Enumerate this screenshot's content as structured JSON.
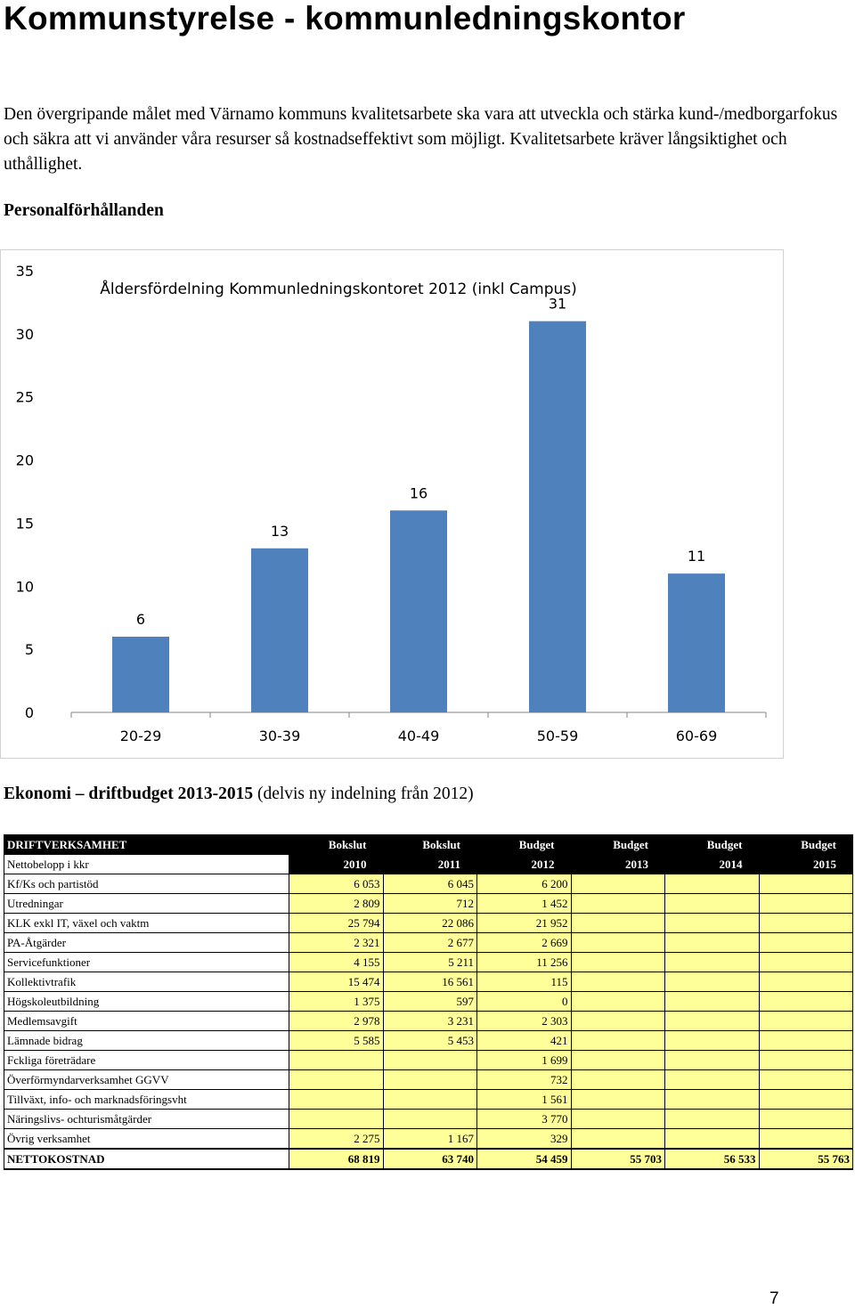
{
  "page": {
    "title": "Kommunstyrelse - kommunledningskontor",
    "intro": "Den övergripande målet med Värnamo kommuns kvalitetsarbete ska vara att utveckla och stärka kund-/medborgarfokus och säkra att vi använder våra resurser så kostnadseffektivt som möjligt. Kvalitetsarbete kräver långsiktighet och uthållighet.",
    "section1": "Personalförhållanden",
    "section2_bold1": "Ekonomi",
    "section2_dash": " – ",
    "section2_bold2": "driftbudget 2013-2015",
    "section2_rest": " (delvis ny indelning från 2012)",
    "page_number": "7"
  },
  "chart_data": {
    "type": "bar",
    "title": "Åldersfördelning Kommunledningskontoret 2012 (inkl Campus)",
    "categories": [
      "20-29",
      "30-39",
      "40-49",
      "50-59",
      "60-69"
    ],
    "values": [
      6,
      13,
      16,
      31,
      11
    ],
    "ylim": [
      0,
      35
    ],
    "yticks": [
      "0",
      "5",
      "10",
      "15",
      "20",
      "25",
      "30",
      "35"
    ],
    "xlabel": "",
    "ylabel": "",
    "bar_color": "#4f81bd",
    "legend": "none"
  },
  "table": {
    "header1": [
      "DRIFTVERKSAMHET",
      "Bokslut",
      "Bokslut",
      "Budget",
      "Budget",
      "Budget",
      "Budget"
    ],
    "header2": [
      "Nettobelopp i kkr",
      "2010",
      "2011",
      "2012",
      "2013",
      "2014",
      "2015"
    ],
    "rows": [
      [
        "Kf/Ks och partistöd",
        "6 053",
        "6 045",
        "6 200",
        "",
        "",
        ""
      ],
      [
        "Utredningar",
        "2 809",
        "712",
        "1 452",
        "",
        "",
        ""
      ],
      [
        "KLK exkl IT, växel och vaktm",
        "25 794",
        "22 086",
        "21 952",
        "",
        "",
        ""
      ],
      [
        "PA-Åtgärder",
        "2 321",
        "2 677",
        "2 669",
        "",
        "",
        ""
      ],
      [
        "Servicefunktioner",
        "4 155",
        "5 211",
        "11 256",
        "",
        "",
        ""
      ],
      [
        "Kollektivtrafik",
        "15 474",
        "16 561",
        "115",
        "",
        "",
        ""
      ],
      [
        "Högskoleutbildning",
        "1 375",
        "597",
        "0",
        "",
        "",
        ""
      ],
      [
        "Medlemsavgift",
        "2 978",
        "3 231",
        "2 303",
        "",
        "",
        ""
      ],
      [
        "Lämnade bidrag",
        "5 585",
        "5 453",
        "421",
        "",
        "",
        ""
      ],
      [
        "Fckliga företrädare",
        "",
        "",
        "1 699",
        "",
        "",
        ""
      ],
      [
        "Överförmyndarverksamhet GGVV",
        "",
        "",
        "732",
        "",
        "",
        ""
      ],
      [
        "Tillväxt, info- och marknadsföringsvht",
        "",
        "",
        "1 561",
        "",
        "",
        ""
      ],
      [
        "Näringslivs- ochturismåtgärder",
        "",
        "",
        "3 770",
        "",
        "",
        ""
      ],
      [
        "Övrig verksamhet",
        "2 275",
        "1 167",
        "329",
        "",
        "",
        ""
      ]
    ],
    "total": [
      "NETTOKOSTNAD",
      "68 819",
      "63 740",
      "54 459",
      "55 703",
      "56 533",
      "55 763"
    ]
  }
}
